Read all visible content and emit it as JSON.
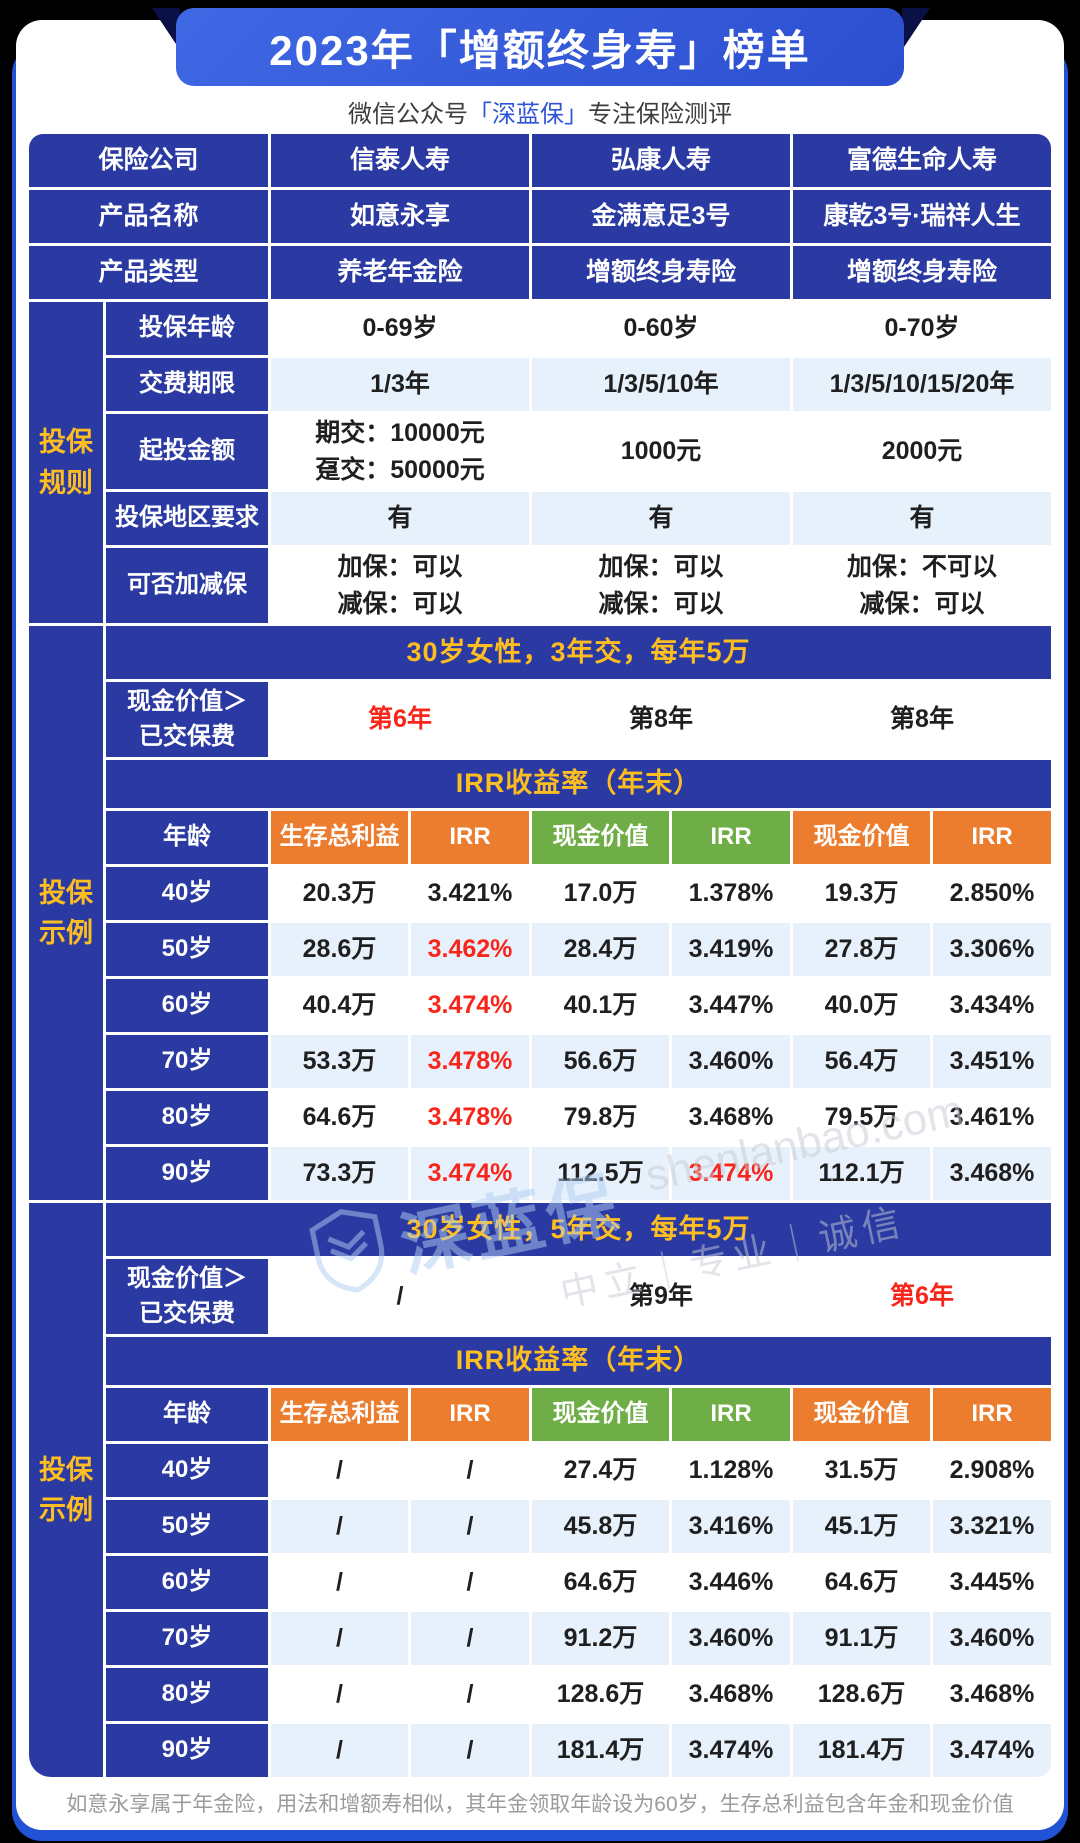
{
  "page": {
    "title": "2023年「增额终身寿」榜单",
    "subtitle_prefix": "微信公众号",
    "subtitle_brand": "「深蓝保」",
    "subtitle_suffix": "专注保险测评",
    "footer_note": "如意永享属于年金险，用法和增额寿相似，其年金领取年龄设为60岁，生存总利益包含年金和现金价值"
  },
  "colors": {
    "banner_blue": "#2f55d6",
    "cell_indigo": "#2b3aa2",
    "underlay_blue": "#2253d6",
    "stripe_blue": "#e7f1fc",
    "accent_yellow": "#ffbe20",
    "header_orange": "#ec7d2f",
    "header_green": "#6fad47",
    "highlight_red": "#f8261a"
  },
  "watermark": {
    "brand": "深蓝保",
    "domain": "shenlanbao.com",
    "slogan": "中立｜专业｜诚信"
  },
  "info_rows": [
    {
      "label": "保险公司",
      "values": [
        "信泰人寿",
        "弘康人寿",
        "富德生命人寿"
      ]
    },
    {
      "label": "产品名称",
      "values": [
        "如意永享",
        "金满意足3号",
        "康乾3号·瑞祥人生"
      ]
    },
    {
      "label": "产品类型",
      "values": [
        "养老年金险",
        "增额终身寿险",
        "增额终身寿险"
      ]
    }
  ],
  "rules_section": {
    "side_label": "投保\n规则",
    "rows": [
      {
        "label": "投保年龄",
        "values": [
          "0-69岁",
          "0-60岁",
          "0-70岁"
        ],
        "stripe": false
      },
      {
        "label": "交费期限",
        "values": [
          "1/3年",
          "1/3/5/10年",
          "1/3/5/10/15/20年"
        ],
        "stripe": true
      },
      {
        "label": "起投金额",
        "values": [
          "期交：10000元\n趸交：50000元",
          "1000元",
          "2000元"
        ],
        "stripe": false
      },
      {
        "label": "投保地区要求",
        "values": [
          "有",
          "有",
          "有"
        ],
        "stripe": true
      },
      {
        "label": "可否加减保",
        "values": [
          "加保：可以\n减保：可以",
          "加保：可以\n减保：可以",
          "加保：不可以\n减保：可以"
        ],
        "stripe": false
      }
    ]
  },
  "examples": [
    {
      "side_label": "投保\n示例",
      "scenario": "30岁女性，3年交，每年5万",
      "breakeven_label": "现金价值＞\n已交保费",
      "breakeven": [
        {
          "text": "第6年",
          "red": true
        },
        {
          "text": "第8年",
          "red": false
        },
        {
          "text": "第8年",
          "red": false
        }
      ],
      "irr_title": "IRR收益率（年末）",
      "col_headers": [
        {
          "text": "年龄",
          "color": "blue"
        },
        {
          "text": "生存总利益",
          "color": "orange"
        },
        {
          "text": "IRR",
          "color": "orange"
        },
        {
          "text": "现金价值",
          "color": "green"
        },
        {
          "text": "IRR",
          "color": "green"
        },
        {
          "text": "现金价值",
          "color": "orange"
        },
        {
          "text": "IRR",
          "color": "orange"
        }
      ],
      "rows": [
        {
          "age": "40岁",
          "cells": [
            {
              "t": "20.3万"
            },
            {
              "t": "3.421%"
            },
            {
              "t": "17.0万"
            },
            {
              "t": "1.378%"
            },
            {
              "t": "19.3万"
            },
            {
              "t": "2.850%"
            }
          ]
        },
        {
          "age": "50岁",
          "cells": [
            {
              "t": "28.6万"
            },
            {
              "t": "3.462%",
              "red": true
            },
            {
              "t": "28.4万"
            },
            {
              "t": "3.419%"
            },
            {
              "t": "27.8万"
            },
            {
              "t": "3.306%"
            }
          ]
        },
        {
          "age": "60岁",
          "cells": [
            {
              "t": "40.4万"
            },
            {
              "t": "3.474%",
              "red": true
            },
            {
              "t": "40.1万"
            },
            {
              "t": "3.447%"
            },
            {
              "t": "40.0万"
            },
            {
              "t": "3.434%"
            }
          ]
        },
        {
          "age": "70岁",
          "cells": [
            {
              "t": "53.3万"
            },
            {
              "t": "3.478%",
              "red": true
            },
            {
              "t": "56.6万"
            },
            {
              "t": "3.460%"
            },
            {
              "t": "56.4万"
            },
            {
              "t": "3.451%"
            }
          ]
        },
        {
          "age": "80岁",
          "cells": [
            {
              "t": "64.6万"
            },
            {
              "t": "3.478%",
              "red": true
            },
            {
              "t": "79.8万"
            },
            {
              "t": "3.468%"
            },
            {
              "t": "79.5万"
            },
            {
              "t": "3.461%"
            }
          ]
        },
        {
          "age": "90岁",
          "cells": [
            {
              "t": "73.3万"
            },
            {
              "t": "3.474%",
              "red": true
            },
            {
              "t": "112.5万"
            },
            {
              "t": "3.474%",
              "red": true
            },
            {
              "t": "112.1万"
            },
            {
              "t": "3.468%"
            }
          ]
        }
      ]
    },
    {
      "side_label": "投保\n示例",
      "scenario": "30岁女性，5年交，每年5万",
      "breakeven_label": "现金价值＞\n已交保费",
      "breakeven": [
        {
          "text": "/",
          "red": false
        },
        {
          "text": "第9年",
          "red": false
        },
        {
          "text": "第6年",
          "red": true
        }
      ],
      "irr_title": "IRR收益率（年末）",
      "col_headers": [
        {
          "text": "年龄",
          "color": "blue"
        },
        {
          "text": "生存总利益",
          "color": "orange"
        },
        {
          "text": "IRR",
          "color": "orange"
        },
        {
          "text": "现金价值",
          "color": "green"
        },
        {
          "text": "IRR",
          "color": "green"
        },
        {
          "text": "现金价值",
          "color": "orange"
        },
        {
          "text": "IRR",
          "color": "orange"
        }
      ],
      "rows": [
        {
          "age": "40岁",
          "cells": [
            {
              "t": "/"
            },
            {
              "t": "/"
            },
            {
              "t": "27.4万"
            },
            {
              "t": "1.128%"
            },
            {
              "t": "31.5万"
            },
            {
              "t": "2.908%"
            }
          ]
        },
        {
          "age": "50岁",
          "cells": [
            {
              "t": "/"
            },
            {
              "t": "/"
            },
            {
              "t": "45.8万"
            },
            {
              "t": "3.416%"
            },
            {
              "t": "45.1万"
            },
            {
              "t": "3.321%"
            }
          ]
        },
        {
          "age": "60岁",
          "cells": [
            {
              "t": "/"
            },
            {
              "t": "/"
            },
            {
              "t": "64.6万"
            },
            {
              "t": "3.446%"
            },
            {
              "t": "64.6万"
            },
            {
              "t": "3.445%"
            }
          ]
        },
        {
          "age": "70岁",
          "cells": [
            {
              "t": "/"
            },
            {
              "t": "/"
            },
            {
              "t": "91.2万"
            },
            {
              "t": "3.460%"
            },
            {
              "t": "91.1万"
            },
            {
              "t": "3.460%"
            }
          ]
        },
        {
          "age": "80岁",
          "cells": [
            {
              "t": "/"
            },
            {
              "t": "/"
            },
            {
              "t": "128.6万"
            },
            {
              "t": "3.468%"
            },
            {
              "t": "128.6万"
            },
            {
              "t": "3.468%"
            }
          ]
        },
        {
          "age": "90岁",
          "cells": [
            {
              "t": "/"
            },
            {
              "t": "/"
            },
            {
              "t": "181.4万"
            },
            {
              "t": "3.474%"
            },
            {
              "t": "181.4万"
            },
            {
              "t": "3.474%"
            }
          ]
        }
      ]
    }
  ]
}
